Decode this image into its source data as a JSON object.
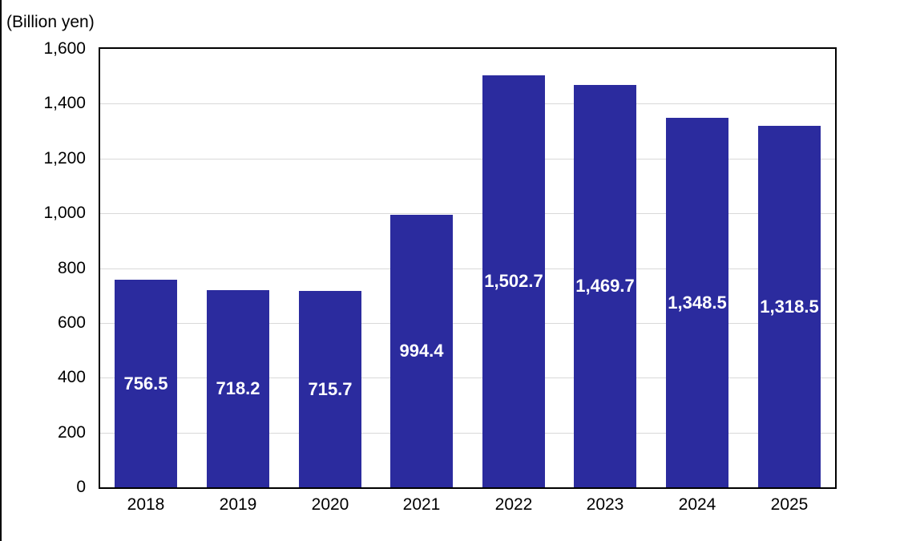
{
  "unit_label": "(Billion yen)",
  "colors": {
    "bar": "#2B2B9E",
    "gridline": "#D9D9D9",
    "axis_border": "#000000",
    "value_label": "#FFFFFF",
    "tick_text": "#000000",
    "background": "#FFFFFF"
  },
  "chart_data": {
    "type": "bar",
    "title": "",
    "unit": "(Billion yen)",
    "categories": [
      "2018",
      "2019",
      "2020",
      "2021",
      "2022",
      "2023",
      "2024",
      "2025"
    ],
    "values": [
      756.5,
      718.2,
      715.7,
      994.4,
      1502.7,
      1469.7,
      1348.5,
      1318.5
    ],
    "value_labels": [
      "756.5",
      "718.2",
      "715.7",
      "994.4",
      "1,502.7",
      "1,469.7",
      "1,348.5",
      "1,318.5"
    ],
    "value_label_position": "center-of-bar",
    "xlabel": "",
    "ylabel": "(Billion yen)",
    "ylim": [
      0,
      1600
    ],
    "ytick_step": 200,
    "ytick_labels": [
      "0",
      "200",
      "400",
      "600",
      "800",
      "1,000",
      "1,200",
      "1,400",
      "1,600"
    ],
    "grid": true,
    "legend": "none"
  }
}
